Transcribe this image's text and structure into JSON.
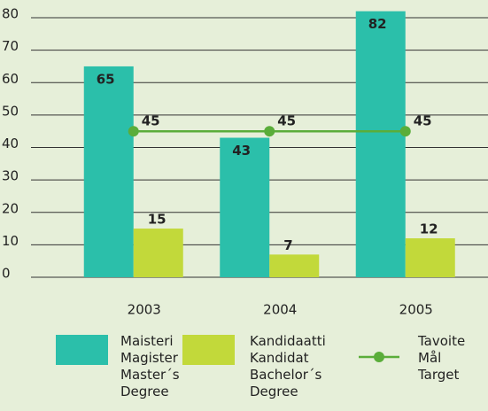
{
  "chart_data": {
    "type": "bar",
    "categories": [
      "2003",
      "2004",
      "2005"
    ],
    "series": [
      {
        "name": "Maisteri\nMagister\nMaster´s\nDegree",
        "color": "#2bbfaa",
        "values": [
          65,
          43,
          82
        ]
      },
      {
        "name": "Kandidaatti\nKandidat\nBachelor´s\nDegree",
        "color": "#c2d93a",
        "values": [
          15,
          7,
          12
        ]
      },
      {
        "name": "Tavoite\nMål\nTarget",
        "color": "#5aad3a",
        "type": "line",
        "values": [
          45,
          45,
          45
        ]
      }
    ],
    "ylim": [
      0,
      80
    ],
    "yticks": [
      0,
      10,
      20,
      30,
      40,
      50,
      60,
      70,
      80
    ],
    "grid": true
  }
}
